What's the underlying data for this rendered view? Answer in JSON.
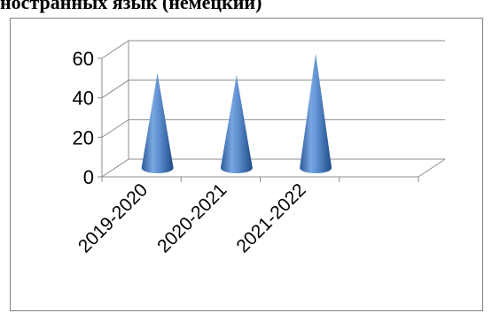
{
  "chart_data": {
    "type": "3d-cone",
    "title": "ностранных язык (немецкий)",
    "categories": [
      "2019-2020",
      "2020-2021",
      "2021-2022"
    ],
    "values": [
      48,
      47,
      58
    ],
    "ylim": [
      0,
      60
    ],
    "yticks": [
      0,
      20,
      40,
      60
    ],
    "grid": true,
    "color": "#4F81BD"
  }
}
